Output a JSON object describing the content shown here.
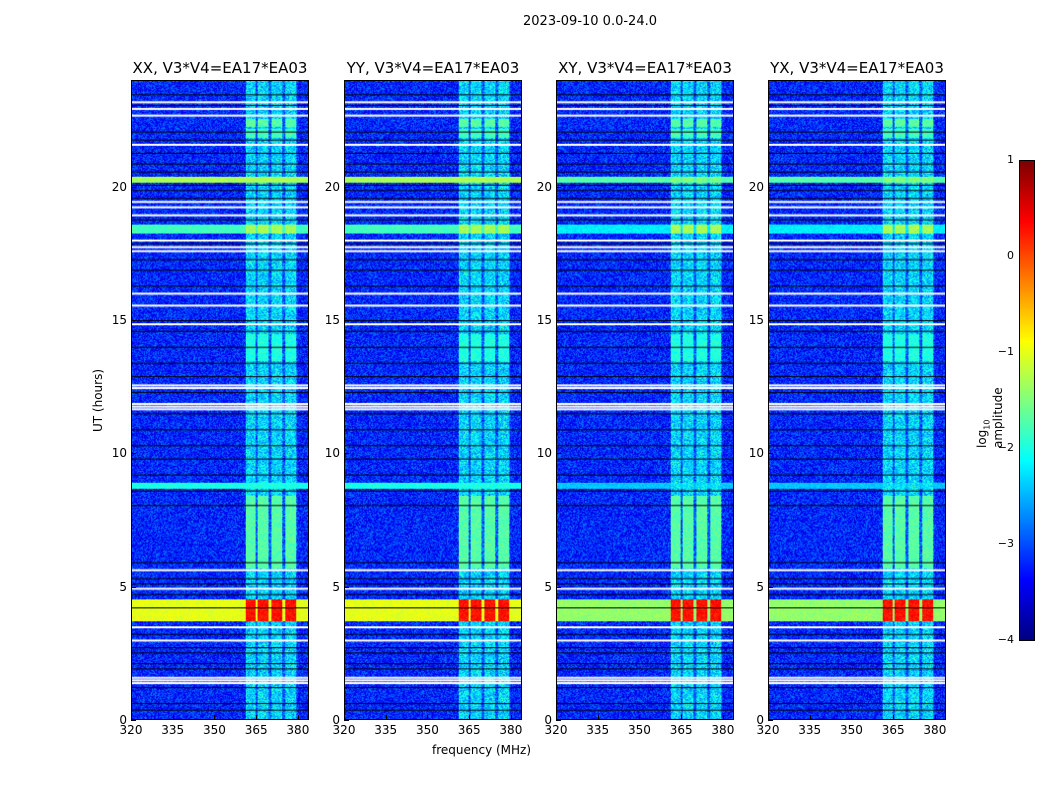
{
  "chart_data": {
    "type": "heatmap",
    "suptitle": "2023-09-10 0.0-24.0",
    "xlabel": "frequency (MHz)",
    "ylabel": "UT (hours)",
    "xlim": [
      320,
      384
    ],
    "ylim": [
      0,
      24
    ],
    "xticks": [
      "320",
      "335",
      "350",
      "365",
      "380"
    ],
    "xtick_values": [
      320,
      335,
      350,
      365,
      380
    ],
    "yticks": [
      "0",
      "5",
      "10",
      "15",
      "20"
    ],
    "ytick_values": [
      0,
      5,
      10,
      15,
      20
    ],
    "panels": [
      {
        "title": "XX, V3*V4=EA17*EA03",
        "pol": "XX"
      },
      {
        "title": "YY, V3*V4=EA17*EA03",
        "pol": "YY"
      },
      {
        "title": "XY, V3*V4=EA17*EA03",
        "pol": "XY"
      },
      {
        "title": "YX, V3*V4=EA17*EA03",
        "pol": "YX"
      }
    ],
    "colorbar": {
      "label_main": "log",
      "label_sub": "10",
      "label_rest": " amplitude",
      "colormap": "jet",
      "range": [
        -4,
        1
      ],
      "ticks": [
        "1",
        "0",
        "−1",
        "−2",
        "−3",
        "−4"
      ],
      "tick_values": [
        1,
        0,
        -1,
        -2,
        -3,
        -4
      ]
    },
    "background_level": -3.2,
    "rfi_band_mhz": [
      361,
      380
    ],
    "rfi_subbands_mhz": [
      [
        361,
        364.6
      ],
      [
        365.6,
        369.4
      ],
      [
        370.4,
        374.4
      ],
      [
        375.4,
        379.6
      ]
    ],
    "bright_events": [
      {
        "hours": [
          3.7,
          4.5
        ],
        "level_rfi": 0.3,
        "level_full_band": -1.0
      },
      {
        "hours": [
          5.7,
          8.4
        ],
        "level_rfi": -1.7
      },
      {
        "hours": [
          8.7,
          8.9
        ],
        "level_full_band": -2.0
      },
      {
        "hours": [
          13.5,
          14.5
        ],
        "level_rfi": -2.0
      },
      {
        "hours": [
          18.3,
          18.6
        ],
        "level_rfi": -1.3,
        "level_full_band": -1.8
      },
      {
        "hours": [
          20.2,
          20.4
        ],
        "level_rfi": -1.5,
        "level_full_band": -1.3
      },
      {
        "hours": [
          21.9,
          22.2
        ],
        "level_rfi": -1.8
      },
      {
        "hours": [
          22.3,
          22.6
        ],
        "level_rfi": -1.7
      }
    ],
    "flagged_hours_white": [
      1.35,
      1.45,
      1.55,
      3.45,
      2.95,
      4.9,
      5.6,
      11.65,
      11.75,
      11.85,
      12.45,
      12.55,
      14.85,
      15.55,
      16.0,
      17.6,
      17.75,
      18.0,
      18.95,
      19.25,
      19.45,
      21.6,
      22.7,
      22.95,
      23.2
    ],
    "gap_hours_black": [
      0.35,
      0.6,
      1.2,
      1.9,
      2.1,
      2.5,
      2.7,
      3.2,
      4.2,
      4.7,
      5.1,
      5.3,
      5.9,
      8.05,
      8.6,
      9.2,
      9.8,
      10.3,
      10.9,
      11.5,
      12.3,
      12.9,
      13.4,
      14.0,
      14.6,
      15.0,
      16.3,
      16.9,
      17.3,
      17.9,
      18.8,
      19.6,
      19.9,
      20.1,
      20.6,
      20.9,
      21.3,
      21.8,
      22.1,
      23.1,
      23.5
    ]
  }
}
